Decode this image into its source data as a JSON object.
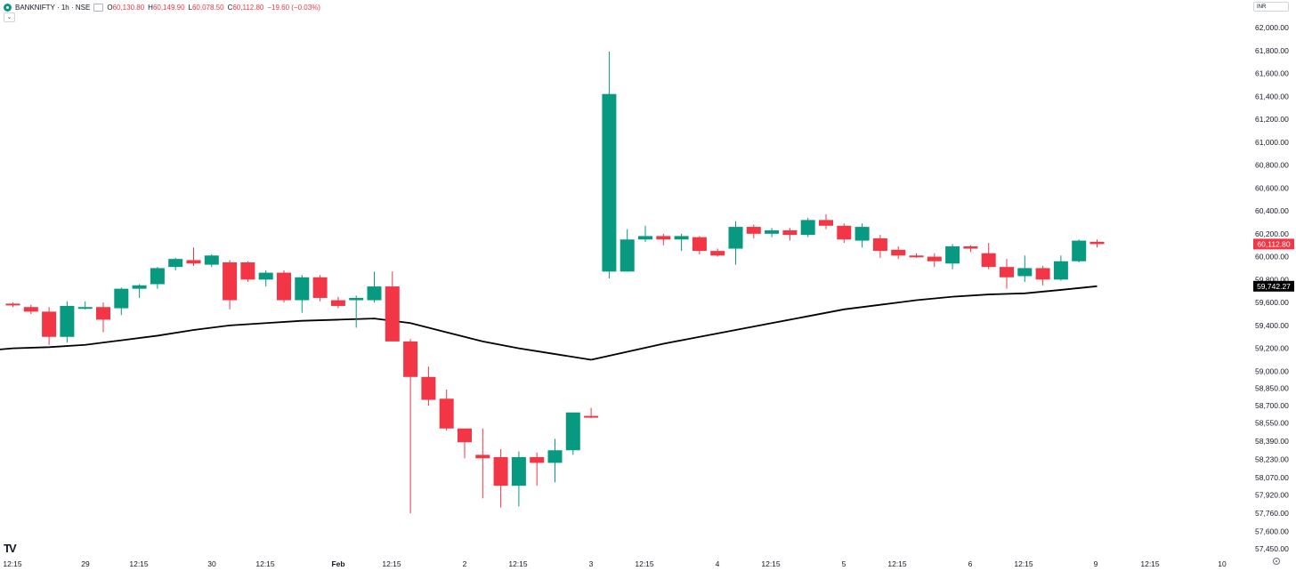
{
  "legend": {
    "symbol": "BANKNIFTY · 1h · NSE",
    "open_label": "O",
    "open": "60,130.80",
    "high_label": "H",
    "high": "60,149.90",
    "low_label": "L",
    "low": "60,078.50",
    "close_label": "C",
    "close": "60,112.80",
    "change": "−19.60 (−0.03%)"
  },
  "collapse_label": "⌄",
  "currency": "INR",
  "logo": "TV",
  "colors": {
    "up": "#089981",
    "down": "#f23645",
    "ma": "#000000",
    "axis_text": "#131722"
  },
  "chart_data": {
    "type": "candlestick",
    "symbol": "BANKNIFTY",
    "interval": "1h",
    "exchange": "NSE",
    "y_axis": {
      "min": 57450,
      "max": 62000,
      "side": "right",
      "ticks": [
        62000,
        61800,
        61600,
        61400,
        61200,
        61000,
        60800,
        60600,
        60400,
        60200,
        60000,
        59800,
        59600,
        59400,
        59200,
        59000,
        58850,
        58700,
        58550,
        58390,
        58230,
        58070,
        57920,
        57760,
        57600,
        57450
      ],
      "tick_labels": [
        "62,000.00",
        "61,800.00",
        "61,600.00",
        "61,400.00",
        "61,200.00",
        "61,000.00",
        "60,800.00",
        "60,600.00",
        "60,400.00",
        "60,200.00",
        "60,000.00",
        "59,800.00",
        "59,600.00",
        "59,400.00",
        "59,200.00",
        "59,000.00",
        "58,850.00",
        "58,700.00",
        "58,550.00",
        "58,390.00",
        "58,230.00",
        "58,070.00",
        "57,920.00",
        "57,760.00",
        "57,600.00",
        "57,450.00"
      ]
    },
    "x_axis": {
      "labels": [
        "12:15",
        "29",
        "12:15",
        "30",
        "12:15",
        "Feb",
        "12:15",
        "2",
        "12:15",
        "3",
        "12:15",
        "4",
        "12:15",
        "5",
        "12:15",
        "6",
        "12:15",
        "9",
        "12:15",
        "10"
      ],
      "bold_labels": [
        "Feb"
      ]
    },
    "price_label": "60,112.80",
    "ma_label": "59,742.27",
    "candles": [
      {
        "o": 59590,
        "h": 59600,
        "l": 59560,
        "c": 59580
      },
      {
        "o": 59560,
        "h": 59580,
        "l": 59500,
        "c": 59520
      },
      {
        "o": 59520,
        "h": 59560,
        "l": 59230,
        "c": 59300
      },
      {
        "o": 59300,
        "h": 59610,
        "l": 59250,
        "c": 59570
      },
      {
        "o": 59560,
        "h": 59610,
        "l": 59540,
        "c": 59560
      },
      {
        "o": 59560,
        "h": 59600,
        "l": 59340,
        "c": 59450
      },
      {
        "o": 59550,
        "h": 59730,
        "l": 59490,
        "c": 59720
      },
      {
        "o": 59720,
        "h": 59760,
        "l": 59640,
        "c": 59750
      },
      {
        "o": 59760,
        "h": 59910,
        "l": 59720,
        "c": 59900
      },
      {
        "o": 59910,
        "h": 59990,
        "l": 59880,
        "c": 59980
      },
      {
        "o": 59970,
        "h": 60080,
        "l": 59920,
        "c": 59940
      },
      {
        "o": 59930,
        "h": 60020,
        "l": 59910,
        "c": 60010
      },
      {
        "o": 59950,
        "h": 59970,
        "l": 59540,
        "c": 59620
      },
      {
        "o": 59950,
        "h": 59960,
        "l": 59780,
        "c": 59800
      },
      {
        "o": 59800,
        "h": 59880,
        "l": 59740,
        "c": 59860
      },
      {
        "o": 59860,
        "h": 59880,
        "l": 59600,
        "c": 59620
      },
      {
        "o": 59620,
        "h": 59840,
        "l": 59510,
        "c": 59820
      },
      {
        "o": 59820,
        "h": 59840,
        "l": 59610,
        "c": 59640
      },
      {
        "o": 59620,
        "h": 59650,
        "l": 59550,
        "c": 59570
      },
      {
        "o": 59620,
        "h": 59660,
        "l": 59380,
        "c": 59640
      },
      {
        "o": 59620,
        "h": 59870,
        "l": 59600,
        "c": 59740
      },
      {
        "o": 59740,
        "h": 59870,
        "l": 59270,
        "c": 59260
      },
      {
        "o": 59260,
        "h": 59280,
        "l": 57760,
        "c": 58950
      },
      {
        "o": 58950,
        "h": 59040,
        "l": 58700,
        "c": 58750
      },
      {
        "o": 58760,
        "h": 58840,
        "l": 58480,
        "c": 58500
      },
      {
        "o": 58500,
        "h": 58500,
        "l": 58240,
        "c": 58380
      },
      {
        "o": 58270,
        "h": 58500,
        "l": 57890,
        "c": 58240
      },
      {
        "o": 58250,
        "h": 58320,
        "l": 57810,
        "c": 58000
      },
      {
        "o": 58000,
        "h": 58300,
        "l": 57820,
        "c": 58250
      },
      {
        "o": 58250,
        "h": 58290,
        "l": 58000,
        "c": 58200
      },
      {
        "o": 58200,
        "h": 58410,
        "l": 58030,
        "c": 58310
      },
      {
        "o": 58310,
        "h": 58620,
        "l": 58270,
        "c": 58640
      },
      {
        "o": 58610,
        "h": 58680,
        "l": 58590,
        "c": 58600
      },
      {
        "o": 59870,
        "h": 61790,
        "l": 59810,
        "c": 61420
      },
      {
        "o": 59870,
        "h": 60240,
        "l": 59870,
        "c": 60150
      },
      {
        "o": 60150,
        "h": 60270,
        "l": 60130,
        "c": 60180
      },
      {
        "o": 60180,
        "h": 60200,
        "l": 60100,
        "c": 60150
      },
      {
        "o": 60150,
        "h": 60200,
        "l": 60050,
        "c": 60180
      },
      {
        "o": 60170,
        "h": 60180,
        "l": 60020,
        "c": 60050
      },
      {
        "o": 60050,
        "h": 60070,
        "l": 60000,
        "c": 60010
      },
      {
        "o": 60070,
        "h": 60310,
        "l": 59930,
        "c": 60260
      },
      {
        "o": 60260,
        "h": 60280,
        "l": 60160,
        "c": 60200
      },
      {
        "o": 60200,
        "h": 60250,
        "l": 60170,
        "c": 60230
      },
      {
        "o": 60230,
        "h": 60250,
        "l": 60140,
        "c": 60190
      },
      {
        "o": 60190,
        "h": 60340,
        "l": 60170,
        "c": 60320
      },
      {
        "o": 60320,
        "h": 60370,
        "l": 60240,
        "c": 60270
      },
      {
        "o": 60270,
        "h": 60290,
        "l": 60120,
        "c": 60150
      },
      {
        "o": 60140,
        "h": 60290,
        "l": 60080,
        "c": 60260
      },
      {
        "o": 60160,
        "h": 60190,
        "l": 59990,
        "c": 60050
      },
      {
        "o": 60060,
        "h": 60090,
        "l": 59980,
        "c": 60010
      },
      {
        "o": 60010,
        "h": 60030,
        "l": 59990,
        "c": 60000
      },
      {
        "o": 60000,
        "h": 60030,
        "l": 59910,
        "c": 59960
      },
      {
        "o": 59940,
        "h": 60110,
        "l": 59890,
        "c": 60090
      },
      {
        "o": 60090,
        "h": 60100,
        "l": 60040,
        "c": 60070
      },
      {
        "o": 60030,
        "h": 60120,
        "l": 59890,
        "c": 59910
      },
      {
        "o": 59910,
        "h": 59980,
        "l": 59720,
        "c": 59820
      },
      {
        "o": 59830,
        "h": 60010,
        "l": 59780,
        "c": 59900
      },
      {
        "o": 59900,
        "h": 59920,
        "l": 59750,
        "c": 59800
      },
      {
        "o": 59800,
        "h": 60010,
        "l": 59790,
        "c": 59960
      },
      {
        "o": 59960,
        "h": 60150,
        "l": 59950,
        "c": 60140
      },
      {
        "o": 60130,
        "h": 60150,
        "l": 60080,
        "c": 60110
      }
    ],
    "ma_segments": [
      [
        [
          0,
          59200
        ],
        [
          2,
          59210
        ],
        [
          4,
          59230
        ],
        [
          6,
          59270
        ],
        [
          8,
          59310
        ],
        [
          10,
          59360
        ],
        [
          12,
          59400
        ],
        [
          14,
          59420
        ],
        [
          16,
          59440
        ],
        [
          18,
          59450
        ],
        [
          20,
          59460
        ],
        [
          22,
          59420
        ],
        [
          24,
          59340
        ],
        [
          26,
          59260
        ],
        [
          28,
          59200
        ],
        [
          30,
          59150
        ],
        [
          32,
          59100
        ]
      ],
      [
        [
          32,
          59100
        ],
        [
          34,
          59170
        ],
        [
          36,
          59240
        ],
        [
          38,
          59300
        ],
        [
          40,
          59360
        ],
        [
          42,
          59420
        ],
        [
          44,
          59480
        ],
        [
          46,
          59540
        ],
        [
          48,
          59580
        ],
        [
          50,
          59620
        ],
        [
          52,
          59650
        ],
        [
          54,
          59670
        ],
        [
          56,
          59680
        ],
        [
          58,
          59710
        ],
        [
          60,
          59742
        ]
      ]
    ]
  }
}
